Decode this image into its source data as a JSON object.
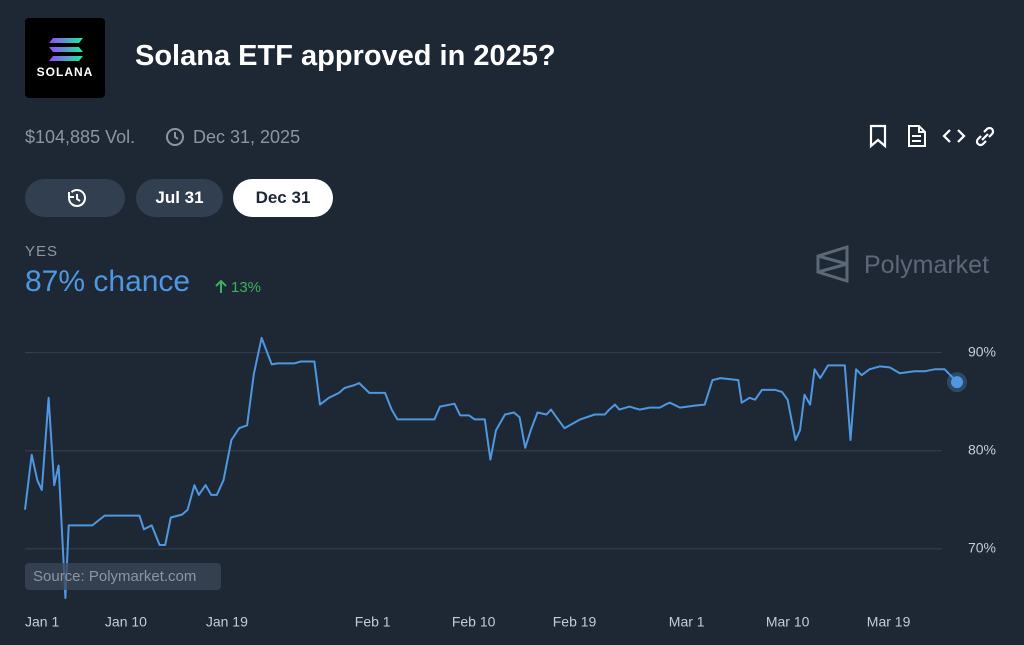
{
  "header": {
    "logo_text": "SOLANA",
    "title": "Solana ETF approved in 2025?",
    "volume": "$104,885 Vol.",
    "end_date": "Dec 31, 2025"
  },
  "tabs": [
    "Jul 31",
    "Dec 31"
  ],
  "outcome": {
    "label": "YES",
    "chance": "87% chance",
    "change": "13%"
  },
  "watermark": "Polymarket",
  "source": "Source: Polymarket.com",
  "chart_data": {
    "type": "line",
    "color": "#4f97e0",
    "grid": true,
    "x": [
      0,
      0.6,
      1.1,
      1.5,
      2.1,
      2.6,
      3.0,
      3.6,
      3.9,
      6.0,
      7.1,
      10.2,
      10.6,
      11.3,
      12.0,
      12.5,
      13.0,
      14.0,
      14.5,
      15.1,
      15.5,
      16.1,
      16.6,
      17.1,
      17.7,
      18.4,
      19.1,
      19.8,
      20.4,
      21.1,
      22.0,
      22.5,
      24.0,
      24.6,
      25.8,
      26.3,
      27.1,
      28.0,
      28.5,
      29.4,
      29.8,
      30.7,
      32.1,
      32.7,
      33.2,
      36.5,
      37.0,
      38.3,
      38.8,
      39.6,
      40.1,
      41.0,
      41.5,
      42.0,
      42.8,
      43.6,
      44.1,
      44.6,
      45.1,
      45.7,
      46.5,
      46.9,
      47.4,
      48.1,
      49.5,
      50.8,
      51.7,
      52.1,
      52.6,
      53.0,
      53.9,
      54.8,
      55.7,
      56.6,
      57.1,
      57.5,
      58.4,
      59.7,
      60.6,
      61.3,
      62.0,
      63.6,
      63.9,
      64.6,
      65.1,
      65.7,
      66.9,
      67.5,
      68.0,
      68.7,
      69.1,
      69.5,
      70.0,
      70.4,
      70.9,
      71.6,
      73.1,
      73.6,
      74.1,
      74.6,
      75.3,
      76.2,
      77.1,
      78.0,
      79.3,
      80.2,
      81.1,
      82.0,
      83.1
    ],
    "values": [
      74.0,
      79.6,
      77.0,
      76.0,
      85.4,
      76.5,
      78.5,
      65.0,
      72.4,
      72.4,
      73.4,
      73.4,
      72.0,
      72.4,
      70.4,
      70.4,
      73.2,
      73.5,
      74.0,
      76.5,
      75.5,
      76.5,
      75.5,
      75.5,
      77.0,
      81.1,
      82.3,
      82.6,
      87.8,
      91.5,
      88.8,
      88.9,
      88.9,
      89.1,
      89.1,
      84.7,
      85.4,
      85.9,
      86.4,
      86.7,
      86.9,
      85.9,
      85.9,
      84.2,
      83.2,
      83.2,
      84.5,
      84.8,
      83.6,
      83.6,
      83.2,
      83.2,
      79.1,
      82.1,
      83.7,
      83.9,
      83.4,
      80.3,
      82.1,
      83.9,
      83.7,
      84.2,
      83.4,
      82.3,
      83.2,
      83.7,
      83.7,
      84.2,
      84.7,
      84.2,
      84.5,
      84.2,
      84.4,
      84.4,
      84.7,
      84.9,
      84.4,
      84.6,
      84.7,
      87.2,
      87.4,
      87.2,
      84.9,
      85.4,
      85.2,
      86.2,
      86.2,
      86.0,
      85.2,
      81.1,
      82.1,
      85.7,
      84.7,
      88.3,
      87.4,
      88.7,
      88.7,
      81.1,
      88.3,
      87.7,
      88.3,
      88.6,
      88.5,
      87.9,
      88.1,
      88.1,
      88.3,
      88.3,
      87.0
    ],
    "xlim": [
      0,
      83.1
    ],
    "xticks": [
      {
        "value": 0,
        "label": "Jan 1"
      },
      {
        "value": 9,
        "label": "Jan 10"
      },
      {
        "value": 18,
        "label": "Jan 19"
      },
      {
        "value": 31,
        "label": "Feb 1"
      },
      {
        "value": 40,
        "label": "Feb 10"
      },
      {
        "value": 49,
        "label": "Feb 19"
      },
      {
        "value": 59,
        "label": "Mar 1"
      },
      {
        "value": 68,
        "label": "Mar 10"
      },
      {
        "value": 77,
        "label": "Mar 19"
      }
    ],
    "ylim": [
      65,
      92
    ],
    "yticks": [
      {
        "value": 70,
        "label": "70%"
      },
      {
        "value": 80,
        "label": "80%"
      },
      {
        "value": 90,
        "label": "90%"
      }
    ]
  }
}
